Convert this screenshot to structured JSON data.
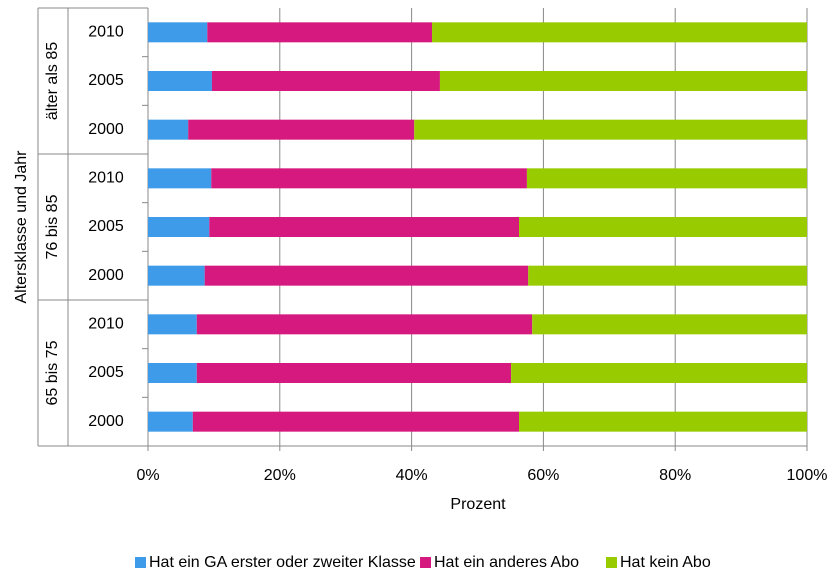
{
  "chart_data": {
    "type": "stacked-barh",
    "y_label": "Altersklasse und Jahr",
    "x_label": "Prozent",
    "groups": [
      "älter als 85",
      "76 bis 85",
      "65 bis 75"
    ],
    "categories": [
      "2010",
      "2005",
      "2000",
      "2010",
      "2005",
      "2000",
      "2010",
      "2005",
      "2000"
    ],
    "series": [
      {
        "name": "Hat ein GA erster oder zweiter Klasse",
        "color": "#3d9be9",
        "values": [
          9.0,
          9.7,
          6.1,
          9.6,
          9.3,
          8.6,
          7.4,
          7.4,
          6.8
        ]
      },
      {
        "name": "Hat ein anderes Abo",
        "color": "#d6197f",
        "values": [
          34.1,
          34.6,
          34.3,
          47.9,
          47.0,
          49.1,
          50.9,
          47.7,
          49.5
        ]
      },
      {
        "name": "Hat kein Abo",
        "color": "#99cc00",
        "values": [
          56.9,
          55.7,
          59.6,
          42.5,
          43.7,
          42.3,
          41.7,
          44.9,
          43.7
        ]
      }
    ],
    "xlim": [
      0,
      100
    ],
    "xticks": [
      {
        "value": 0,
        "label": "0%"
      },
      {
        "value": 20,
        "label": "20%"
      },
      {
        "value": 40,
        "label": "40%"
      },
      {
        "value": 60,
        "label": "60%"
      },
      {
        "value": 80,
        "label": "80%"
      },
      {
        "value": 100,
        "label": "100%"
      }
    ],
    "grid": true,
    "legend": "bottom"
  }
}
